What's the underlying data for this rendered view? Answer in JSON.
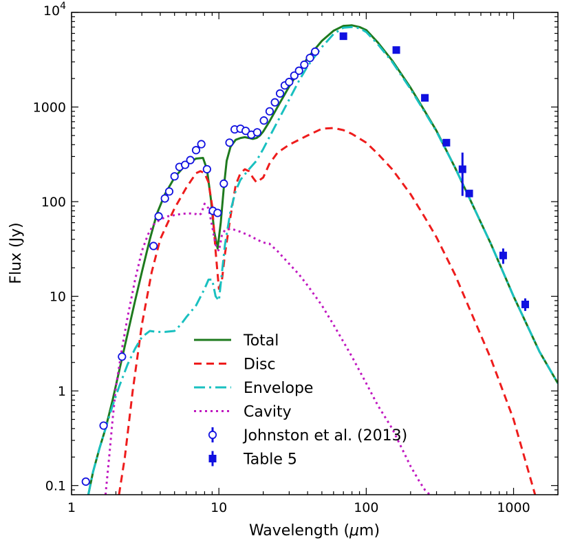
{
  "chart_data": {
    "type": "line",
    "title": "",
    "xlabel_main": "Wavelength (",
    "xlabel_mu": "μ",
    "xlabel_tail": "m)",
    "ylabel": "Flux (Jy)",
    "xscale": "log",
    "yscale": "log",
    "xlim": [
      1,
      2000
    ],
    "ylim": [
      0.08,
      10000
    ],
    "x_ticks": [
      {
        "value": 1,
        "label": "1"
      },
      {
        "value": 10,
        "label": "10"
      },
      {
        "value": 100,
        "label": "100"
      },
      {
        "value": 1000,
        "label": "1000"
      }
    ],
    "y_ticks": [
      {
        "value": 0.1,
        "label": "0.1"
      },
      {
        "value": 1,
        "label": "1"
      },
      {
        "value": 10,
        "label": "10"
      },
      {
        "value": 100,
        "label": "100"
      },
      {
        "value": 1000,
        "label": "1000"
      },
      {
        "value": 10000,
        "label": "10",
        "sup": "4"
      }
    ],
    "series": [
      {
        "name": "Total",
        "color": "#1e7a1e",
        "dash": "none",
        "width": 3,
        "x": [
          1.3,
          1.4,
          1.55,
          1.7,
          1.9,
          2.1,
          2.4,
          2.7,
          3.0,
          3.4,
          3.8,
          4.3,
          5,
          6,
          7,
          7.8,
          8.3,
          8.8,
          9.3,
          9.8,
          10.3,
          10.8,
          11.3,
          12,
          13,
          14,
          15,
          16,
          17,
          18,
          19,
          20,
          22,
          25,
          30,
          35,
          40,
          50,
          60,
          70,
          80,
          90,
          100,
          120,
          150,
          200,
          250,
          300,
          400,
          500,
          700,
          1000,
          1500,
          2000
        ],
        "y": [
          0.08,
          0.14,
          0.25,
          0.4,
          0.8,
          1.6,
          4,
          9,
          18,
          40,
          75,
          120,
          180,
          250,
          285,
          290,
          220,
          110,
          48,
          32,
          60,
          140,
          270,
          380,
          450,
          470,
          480,
          470,
          460,
          470,
          500,
          550,
          700,
          1000,
          1650,
          2400,
          3300,
          5000,
          6400,
          7200,
          7300,
          7000,
          6500,
          4800,
          3100,
          1600,
          900,
          560,
          230,
          110,
          36,
          10,
          2.6,
          1.2
        ]
      },
      {
        "name": "Disc",
        "color": "#ee1c1c",
        "dash": "11,7",
        "width": 3,
        "x": [
          2.1,
          2.3,
          2.6,
          3.0,
          3.5,
          4,
          4.5,
          5,
          6,
          7,
          7.5,
          8,
          8.5,
          9,
          9.5,
          10,
          10.5,
          11,
          12,
          13,
          14,
          15,
          16,
          17,
          18,
          20,
          22,
          25,
          30,
          40,
          50,
          60,
          70,
          80,
          100,
          120,
          150,
          200,
          250,
          300,
          400,
          500,
          700,
          1000,
          1300,
          1400
        ],
        "y": [
          0.08,
          0.2,
          1,
          5,
          18,
          40,
          60,
          85,
          140,
          200,
          210,
          200,
          160,
          90,
          30,
          12,
          15,
          28,
          70,
          150,
          200,
          220,
          210,
          180,
          160,
          180,
          250,
          330,
          400,
          500,
          590,
          600,
          570,
          520,
          420,
          320,
          220,
          120,
          68,
          42,
          17,
          7.5,
          2.2,
          0.5,
          0.12,
          0.08
        ]
      },
      {
        "name": "Envelope",
        "color": "#19c0c0",
        "dash": "16,6,3,6",
        "width": 3,
        "x": [
          1.3,
          1.4,
          1.55,
          1.7,
          1.9,
          2.1,
          2.4,
          2.7,
          3.0,
          3.4,
          3.8,
          4.3,
          5.0,
          5.5,
          6,
          7,
          8,
          8.5,
          9,
          9.5,
          10,
          10.5,
          11,
          12,
          13,
          14,
          16,
          18,
          20,
          22,
          25,
          30,
          35,
          40,
          50,
          60,
          70,
          80,
          90,
          100,
          120,
          150,
          200,
          250,
          300,
          400,
          500,
          700,
          1000,
          1500,
          2000
        ],
        "y": [
          0.08,
          0.14,
          0.25,
          0.4,
          0.7,
          1.1,
          1.9,
          2.8,
          3.7,
          4.3,
          4.2,
          4.2,
          4.3,
          5,
          6,
          8,
          12,
          15,
          15,
          10,
          9,
          18,
          35,
          80,
          130,
          170,
          220,
          270,
          360,
          480,
          700,
          1200,
          1900,
          2700,
          4300,
          5900,
          6900,
          7000,
          6800,
          6200,
          4600,
          3000,
          1550,
          880,
          550,
          230,
          110,
          36,
          10,
          2.6,
          1.2
        ]
      },
      {
        "name": "Cavity",
        "color": "#c018c0",
        "dash": "3,5",
        "width": 3,
        "x": [
          1.7,
          1.8,
          1.9,
          2.0,
          2.2,
          2.4,
          2.7,
          3.0,
          3.3,
          3.6,
          4,
          4.5,
          5,
          5.5,
          6,
          6.5,
          7,
          7.3,
          7.6,
          8,
          8.5,
          9,
          9.5,
          10,
          10.5,
          11,
          12,
          14,
          16,
          18,
          20,
          22,
          25,
          30,
          35,
          40,
          50,
          60,
          70,
          80,
          100,
          120,
          150,
          200,
          230,
          250,
          270
        ],
        "y": [
          0.08,
          0.2,
          0.5,
          1.1,
          2.8,
          6,
          15,
          30,
          45,
          57,
          65,
          70,
          72,
          74,
          75,
          75,
          74,
          72,
          75,
          95,
          85,
          55,
          35,
          30,
          45,
          50,
          52,
          48,
          44,
          40,
          37,
          36,
          30,
          22,
          17,
          13,
          8,
          5,
          3.3,
          2.3,
          1.2,
          0.7,
          0.4,
          0.16,
          0.11,
          0.09,
          0.08
        ]
      }
    ],
    "scatter_johnston": {
      "name": "Johnston et al. (2013)",
      "color": "#1010e0",
      "points": [
        {
          "x": 1.25,
          "y": 0.11
        },
        {
          "x": 1.65,
          "y": 0.43
        },
        {
          "x": 2.2,
          "y": 2.3
        },
        {
          "x": 3.6,
          "y": 34
        },
        {
          "x": 3.9,
          "y": 70
        },
        {
          "x": 4.3,
          "y": 108
        },
        {
          "x": 4.6,
          "y": 128
        },
        {
          "x": 5.0,
          "y": 185
        },
        {
          "x": 5.4,
          "y": 233
        },
        {
          "x": 5.9,
          "y": 245
        },
        {
          "x": 6.4,
          "y": 275
        },
        {
          "x": 7.0,
          "y": 350
        },
        {
          "x": 7.6,
          "y": 405
        },
        {
          "x": 8.3,
          "y": 220
        },
        {
          "x": 9.1,
          "y": 80
        },
        {
          "x": 9.8,
          "y": 76
        },
        {
          "x": 10.8,
          "y": 155
        },
        {
          "x": 11.8,
          "y": 420
        },
        {
          "x": 12.8,
          "y": 580
        },
        {
          "x": 14.0,
          "y": 590
        },
        {
          "x": 15.2,
          "y": 560
        },
        {
          "x": 16.6,
          "y": 510
        },
        {
          "x": 18.2,
          "y": 540
        },
        {
          "x": 20.2,
          "y": 720
        },
        {
          "x": 22.1,
          "y": 900
        },
        {
          "x": 24.0,
          "y": 1120
        },
        {
          "x": 26.0,
          "y": 1390
        },
        {
          "x": 28.0,
          "y": 1690
        },
        {
          "x": 30.0,
          "y": 1840
        },
        {
          "x": 32.5,
          "y": 2150
        },
        {
          "x": 35.0,
          "y": 2420
        },
        {
          "x": 38.0,
          "y": 2800
        },
        {
          "x": 41.5,
          "y": 3300
        },
        {
          "x": 45.0,
          "y": 3850
        }
      ]
    },
    "scatter_table5": {
      "name": "Table 5",
      "color": "#1010e0",
      "points": [
        {
          "x": 70,
          "y": 5600,
          "err": [
            5300,
            5900
          ]
        },
        {
          "x": 160,
          "y": 4000,
          "err": [
            3750,
            4250
          ]
        },
        {
          "x": 250,
          "y": 1250,
          "err": [
            1150,
            1350
          ]
        },
        {
          "x": 350,
          "y": 420,
          "err": [
            390,
            450
          ]
        },
        {
          "x": 450,
          "y": 220,
          "err": [
            115,
            330
          ]
        },
        {
          "x": 500,
          "y": 122,
          "err": [
            112,
            133
          ]
        },
        {
          "x": 850,
          "y": 27,
          "err": [
            22,
            32
          ]
        },
        {
          "x": 1200,
          "y": 8.2,
          "err": [
            7,
            9.5
          ]
        }
      ]
    },
    "legend": {
      "position": "center-bottom",
      "entries": [
        {
          "label": "Total",
          "kind": "line",
          "series": 0
        },
        {
          "label": "Disc",
          "kind": "line",
          "series": 1
        },
        {
          "label": "Envelope",
          "kind": "line",
          "series": 2
        },
        {
          "label": "Cavity",
          "kind": "line",
          "series": 3
        },
        {
          "label": "Johnston et al. (2013)",
          "kind": "open-circle"
        },
        {
          "label": "Table 5",
          "kind": "filled-square"
        }
      ]
    }
  }
}
